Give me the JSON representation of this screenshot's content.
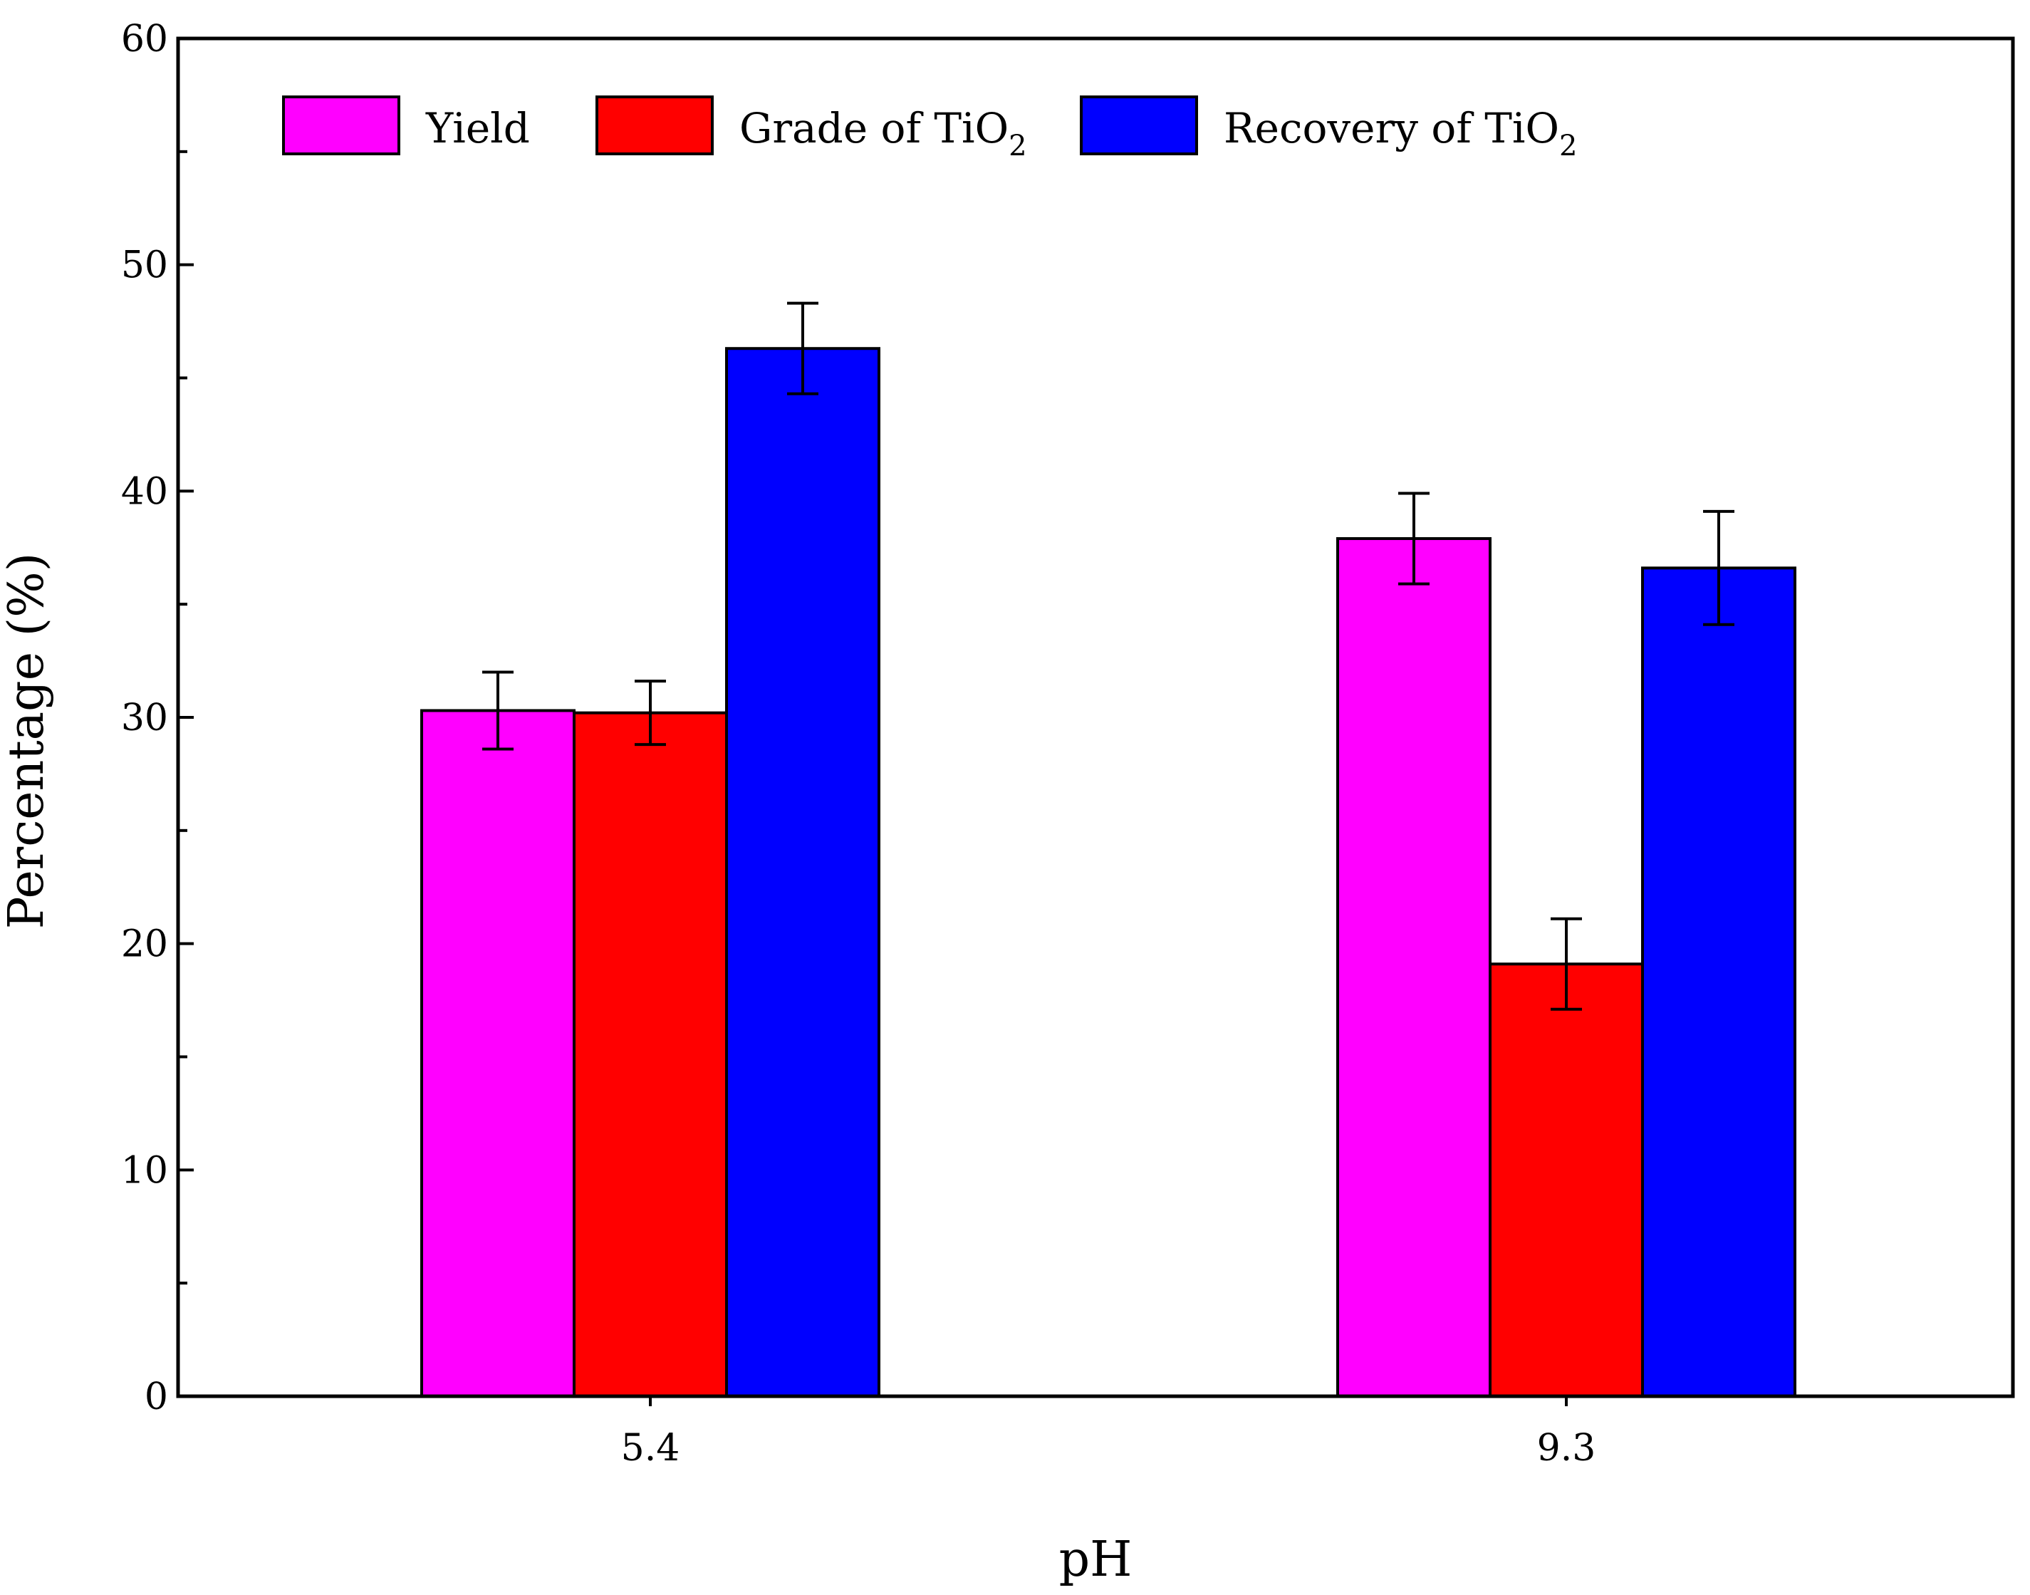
{
  "chart_data": {
    "type": "bar",
    "title": "",
    "xlabel": "pH",
    "ylabel": "Percentage (%)",
    "ylim": [
      0,
      60
    ],
    "yticks": [
      0,
      10,
      20,
      30,
      40,
      50,
      60
    ],
    "yminor_step": 5,
    "grid": false,
    "categories": [
      "5.4",
      "9.3"
    ],
    "legend_position": "top-left",
    "series": [
      {
        "name": "Yield",
        "label_main": "Yield",
        "label_sub": "",
        "color": "#ff00ff",
        "values": [
          30.3,
          37.9
        ],
        "errors": [
          1.7,
          2.0
        ]
      },
      {
        "name": "Grade of TiO2",
        "label_main": "Grade of TiO",
        "label_sub": "2",
        "color": "#ff0000",
        "values": [
          30.2,
          19.1
        ],
        "errors": [
          1.4,
          2.0
        ]
      },
      {
        "name": "Recovery of TiO2",
        "label_main": "Recovery of TiO",
        "label_sub": "2",
        "color": "#0000ff",
        "values": [
          46.3,
          36.6
        ],
        "errors": [
          2.0,
          2.5
        ]
      }
    ]
  }
}
